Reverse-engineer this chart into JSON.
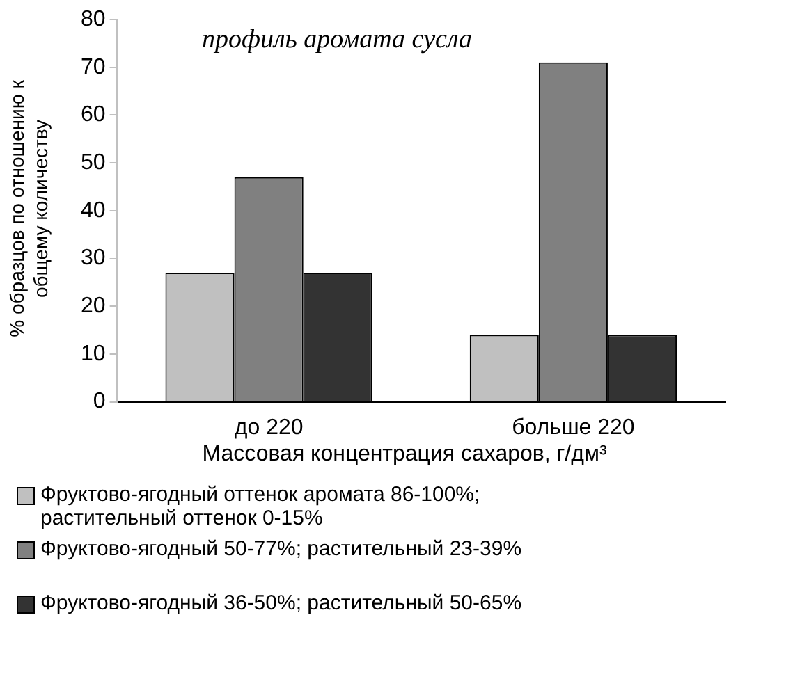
{
  "chart_data": {
    "type": "bar",
    "title": "профиль аромата сусла",
    "xlabel": "Массовая концентрация сахаров, г/дм³",
    "ylabel": "% образцов по отношению к общему количеству",
    "categories": [
      "до 220",
      "больше 220"
    ],
    "series": [
      {
        "name": "Фруктово-ягодный оттенок аромата 86-100%; растительный оттенок 0-15%",
        "color": "#c0c0c0",
        "values": [
          27,
          14
        ]
      },
      {
        "name": "Фруктово-ягодный 50-77%; растительный 23-39%",
        "color": "#808080",
        "values": [
          47,
          71
        ]
      },
      {
        "name": "Фруктово-ягодный 36-50%; растительный 50-65%",
        "color": "#333333",
        "values": [
          27,
          14
        ]
      }
    ],
    "ylim": [
      0,
      80
    ],
    "yticks": [
      0,
      10,
      20,
      30,
      40,
      50,
      60,
      70,
      80
    ],
    "grid": false,
    "legend": "bottom"
  }
}
